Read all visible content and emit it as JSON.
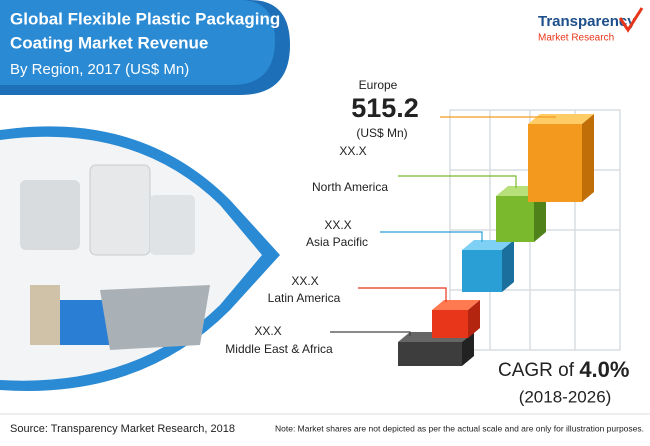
{
  "header": {
    "title_line1": "Global Flexible Plastic Packaging",
    "title_line2": "Coating Market Revenue",
    "subtitle": "By Region, 2017 (US$ Mn)"
  },
  "logo": {
    "name_line1": "Transparency",
    "name_line2": "Market Research"
  },
  "regions": [
    {
      "name": "Europe",
      "value": 515.2,
      "unit": "(US$ Mn)"
    },
    {
      "name": "North America",
      "value": "XX.X"
    },
    {
      "name": "Asia Pacific",
      "value": "XX.X"
    },
    {
      "name": "Latin America",
      "value": "XX.X"
    },
    {
      "name": "Middle East & Africa",
      "value": "XX.X"
    }
  ],
  "cagr": {
    "prefix": "CAGR of",
    "value": "4.0%",
    "period": "(2018-2026)"
  },
  "footer": {
    "source": "Source: Transparency Market Research, 2018",
    "note": "Note: Market shares are not depicted as per the actual scale and are only for illustration purposes."
  }
}
